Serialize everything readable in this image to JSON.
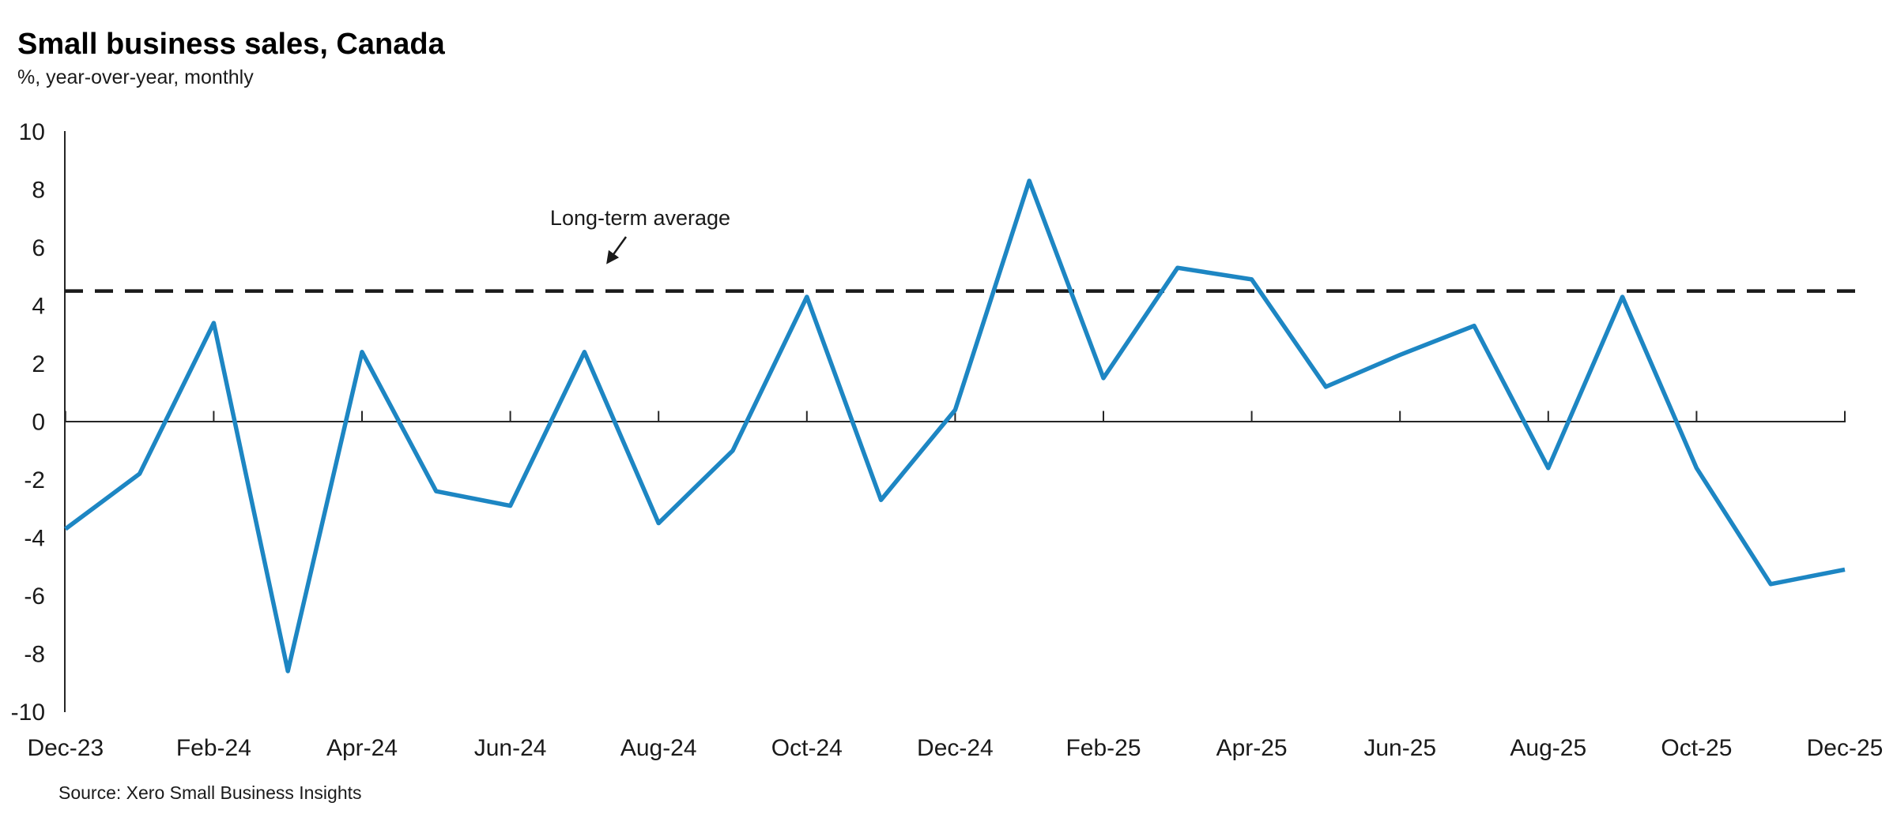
{
  "header": {
    "title": "Small business sales, Canada",
    "subtitle": "%, year-over-year, monthly"
  },
  "footer": {
    "source": "Source: Xero Small Business Insights"
  },
  "chart_data": {
    "type": "line",
    "title": "Small business sales, Canada",
    "subtitle": "%, year-over-year, monthly",
    "x": [
      "Dec-23",
      "Jan-24",
      "Feb-24",
      "Mar-24",
      "Apr-24",
      "May-24",
      "Jun-24",
      "Jul-24",
      "Aug-24",
      "Sep-24",
      "Oct-24",
      "Nov-24",
      "Dec-24",
      "Jan-25",
      "Feb-25",
      "Mar-25",
      "Apr-25",
      "May-25",
      "Jun-25",
      "Jul-25",
      "Aug-25",
      "Sep-25",
      "Oct-25",
      "Nov-25",
      "Dec-25"
    ],
    "values": [
      -3.7,
      -1.8,
      3.4,
      -8.6,
      2.4,
      -2.4,
      -2.9,
      2.4,
      -3.5,
      -1.0,
      4.3,
      -2.7,
      0.4,
      8.3,
      1.5,
      5.3,
      4.9,
      1.2,
      2.3,
      3.3,
      -1.6,
      4.3,
      -1.6,
      -5.6,
      -5.1
    ],
    "x_tick_labels": [
      "Dec-23",
      "Feb-24",
      "Apr-24",
      "Jun-24",
      "Aug-24",
      "Oct-24",
      "Dec-24",
      "Feb-25",
      "Apr-25",
      "Jun-25",
      "Aug-25",
      "Oct-25",
      "Dec-25"
    ],
    "y_ticks": [
      10,
      8,
      6,
      4,
      2,
      0,
      -2,
      -4,
      -6,
      -8,
      -10
    ],
    "ylim": [
      -10,
      10
    ],
    "grid": "off",
    "legend": "none",
    "average_line": {
      "label": "Long-term average",
      "value": 4.5
    },
    "colors": {
      "line": "#1d86c3",
      "average": "#1a1a1a",
      "axis": "#262626"
    },
    "source": "Source: Xero Small Business Insights"
  }
}
